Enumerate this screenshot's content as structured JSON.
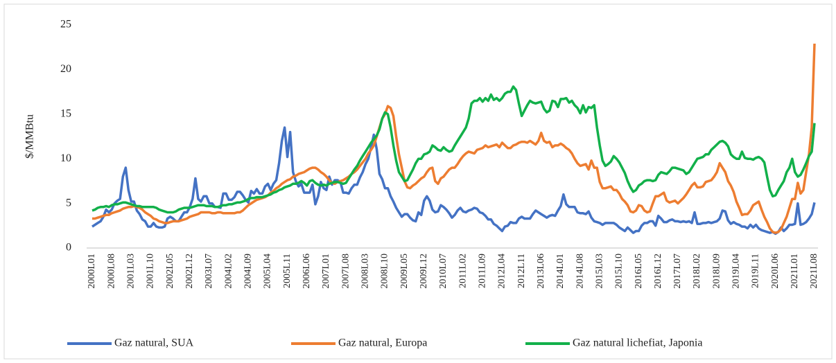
{
  "chart_data": {
    "type": "line",
    "y_label": "$/MMBtu",
    "ylim": [
      0,
      25
    ],
    "yticks": [
      0,
      5,
      10,
      15,
      20,
      25
    ],
    "legend": "bottom",
    "categories": [
      "2000L01",
      null,
      null,
      null,
      null,
      null,
      null,
      "2000L08",
      null,
      null,
      null,
      null,
      null,
      null,
      "2001L03",
      null,
      null,
      null,
      null,
      null,
      null,
      "2001L10",
      null,
      null,
      null,
      null,
      null,
      null,
      "2002L05",
      null,
      null,
      null,
      null,
      null,
      null,
      "2002L12",
      null,
      null,
      null,
      null,
      null,
      null,
      "2003L07",
      null,
      null,
      null,
      null,
      null,
      null,
      "2004L02",
      null,
      null,
      null,
      null,
      null,
      null,
      "2004L09",
      null,
      null,
      null,
      null,
      null,
      null,
      "2005L04",
      null,
      null,
      null,
      null,
      null,
      null,
      "2005L11",
      null,
      null,
      null,
      null,
      null,
      null,
      "2006L06",
      null,
      null,
      null,
      null,
      null,
      null,
      "2007L01",
      null,
      null,
      null,
      null,
      null,
      null,
      "2007L08",
      null,
      null,
      null,
      null,
      null,
      null,
      "2008L03",
      null,
      null,
      null,
      null,
      null,
      null,
      "2008L10",
      null,
      null,
      null,
      null,
      null,
      null,
      "2009L05",
      null,
      null,
      null,
      null,
      null,
      null,
      "2009L12",
      null,
      null,
      null,
      null,
      null,
      null,
      "2010L07",
      null,
      null,
      null,
      null,
      null,
      null,
      "2011L02",
      null,
      null,
      null,
      null,
      null,
      null,
      "2011L09",
      null,
      null,
      null,
      null,
      null,
      null,
      "2012L04",
      null,
      null,
      null,
      null,
      null,
      null,
      "2012L11",
      null,
      null,
      null,
      null,
      null,
      null,
      "2013L06",
      null,
      null,
      null,
      null,
      null,
      null,
      "2014L01",
      null,
      null,
      null,
      null,
      null,
      null,
      "2014L08",
      null,
      null,
      null,
      null,
      null,
      null,
      "2015L03",
      null,
      null,
      null,
      null,
      null,
      null,
      "2015L10",
      null,
      null,
      null,
      null,
      null,
      null,
      "2016L05",
      null,
      null,
      null,
      null,
      null,
      null,
      "2016L12",
      null,
      null,
      null,
      null,
      null,
      null,
      "2017L07",
      null,
      null,
      null,
      null,
      null,
      null,
      "2018L02",
      null,
      null,
      null,
      null,
      null,
      null,
      "2018L09",
      null,
      null,
      null,
      null,
      null,
      null,
      "2019L04",
      null,
      null,
      null,
      null,
      null,
      null,
      "2019L11",
      null,
      null,
      null,
      null,
      null,
      null,
      "2020L06",
      null,
      null,
      null,
      null,
      null,
      null,
      "2021L01",
      null,
      null,
      null,
      null,
      null,
      null,
      "2021L08"
    ],
    "series": [
      {
        "name": "Gaz natural, SUA",
        "color": "#4472c4",
        "values": [
          2.4,
          2.6,
          2.8,
          3.0,
          3.5,
          4.3,
          4.0,
          4.3,
          5.0,
          5.3,
          5.5,
          8.0,
          9.0,
          6.5,
          5.2,
          5.2,
          4.2,
          3.8,
          3.2,
          3.0,
          2.4,
          2.4,
          2.8,
          2.4,
          2.3,
          2.3,
          2.4,
          3.3,
          3.5,
          3.3,
          3.0,
          3.0,
          3.5,
          4.0,
          4.0,
          4.6,
          5.5,
          7.8,
          5.5,
          5.2,
          5.8,
          5.8,
          5.0,
          5.0,
          4.6,
          4.6,
          4.5,
          6.1,
          6.1,
          5.4,
          5.4,
          5.7,
          6.3,
          6.3,
          5.9,
          5.4,
          5.1,
          6.4,
          6.1,
          6.6,
          6.1,
          6.1,
          6.9,
          7.2,
          6.5,
          7.2,
          7.6,
          9.5,
          12.0,
          13.5,
          10.2,
          13.0,
          8.5,
          7.5,
          6.9,
          7.2,
          6.2,
          6.2,
          6.2,
          7.1,
          4.9,
          5.8,
          7.4,
          6.7,
          6.5,
          8.0,
          7.1,
          7.6,
          7.6,
          7.4,
          6.2,
          6.2,
          6.1,
          6.7,
          7.1,
          7.1,
          7.9,
          8.5,
          9.4,
          10.0,
          11.3,
          12.7,
          11.1,
          8.3,
          7.7,
          6.7,
          6.7,
          5.8,
          5.2,
          4.5,
          4.0,
          3.5,
          3.8,
          3.8,
          3.4,
          3.1,
          3.0,
          4.0,
          3.7,
          5.3,
          5.8,
          5.3,
          4.3,
          4.0,
          4.1,
          4.8,
          4.6,
          4.3,
          3.9,
          3.4,
          3.7,
          4.2,
          4.5,
          4.1,
          4.0,
          4.2,
          4.3,
          4.5,
          4.4,
          4.0,
          3.9,
          3.6,
          3.2,
          3.2,
          2.7,
          2.5,
          2.2,
          1.9,
          2.4,
          2.5,
          2.9,
          2.8,
          2.8,
          3.3,
          3.5,
          3.3,
          3.3,
          3.3,
          3.8,
          4.2,
          4.0,
          3.8,
          3.6,
          3.4,
          3.6,
          3.7,
          3.6,
          4.2,
          4.7,
          6.0,
          4.9,
          4.6,
          4.6,
          4.6,
          4.0,
          3.9,
          3.9,
          3.8,
          4.1,
          3.4,
          3.0,
          2.9,
          2.8,
          2.6,
          2.8,
          2.8,
          2.8,
          2.8,
          2.6,
          2.3,
          2.1,
          1.9,
          2.3,
          2.0,
          1.7,
          1.9,
          1.9,
          2.5,
          2.8,
          2.8,
          3.0,
          3.0,
          2.5,
          3.6,
          3.3,
          2.9,
          2.9,
          3.1,
          3.2,
          3.0,
          3.0,
          2.9,
          3.0,
          2.9,
          3.0,
          2.8,
          4.0,
          2.7,
          2.7,
          2.8,
          2.8,
          2.9,
          2.8,
          2.9,
          3.0,
          3.3,
          4.2,
          4.1,
          3.1,
          2.7,
          2.9,
          2.7,
          2.6,
          2.4,
          2.4,
          2.2,
          2.6,
          2.3,
          2.6,
          2.2,
          2.0,
          1.9,
          1.8,
          1.7,
          1.8,
          1.6,
          1.8,
          2.3,
          1.9,
          2.2,
          2.6,
          2.6,
          2.7,
          5.0,
          2.6,
          2.7,
          2.9,
          3.3,
          3.8,
          5.1
        ]
      },
      {
        "name": "Gaz natural, Europa",
        "color": "#ed7d31",
        "values": [
          3.3,
          3.3,
          3.4,
          3.5,
          3.6,
          3.7,
          3.7,
          3.9,
          4.0,
          4.1,
          4.2,
          4.4,
          4.5,
          4.6,
          4.6,
          4.7,
          4.6,
          4.5,
          4.3,
          4.0,
          3.8,
          3.6,
          3.3,
          3.2,
          3.0,
          2.9,
          2.8,
          2.8,
          2.9,
          3.0,
          3.0,
          3.0,
          3.1,
          3.2,
          3.3,
          3.5,
          3.6,
          3.7,
          3.8,
          4.0,
          4.0,
          4.0,
          4.0,
          3.9,
          3.9,
          4.0,
          4.0,
          3.9,
          3.9,
          3.9,
          3.9,
          3.9,
          4.0,
          4.0,
          4.2,
          4.5,
          4.8,
          5.0,
          5.2,
          5.4,
          5.5,
          5.6,
          5.7,
          5.9,
          6.2,
          6.4,
          6.7,
          6.9,
          7.2,
          7.4,
          7.6,
          7.7,
          8.0,
          8.1,
          8.3,
          8.4,
          8.5,
          8.7,
          8.9,
          9.0,
          9.0,
          8.8,
          8.5,
          8.3,
          8.0,
          7.6,
          7.3,
          7.2,
          7.4,
          7.5,
          7.6,
          7.8,
          8.0,
          8.3,
          8.5,
          8.8,
          9.2,
          9.6,
          10.0,
          10.6,
          11.0,
          11.5,
          12.5,
          13.5,
          14.5,
          15.0,
          15.9,
          15.7,
          14.8,
          12.5,
          10.5,
          9.0,
          7.5,
          6.8,
          6.7,
          7.0,
          7.2,
          7.5,
          7.8,
          8.0,
          8.5,
          8.9,
          9.0,
          7.5,
          7.2,
          7.8,
          8.0,
          8.4,
          8.8,
          9.0,
          9.0,
          9.4,
          9.9,
          10.3,
          10.6,
          10.8,
          10.7,
          10.6,
          11.0,
          11.1,
          11.2,
          11.5,
          11.3,
          11.4,
          11.5,
          11.6,
          11.3,
          11.8,
          11.5,
          11.2,
          11.2,
          11.5,
          11.6,
          11.8,
          11.9,
          11.9,
          11.8,
          12.0,
          11.8,
          11.6,
          12.0,
          12.9,
          12.0,
          11.8,
          11.9,
          11.3,
          11.5,
          11.5,
          11.7,
          11.5,
          11.2,
          11.0,
          10.6,
          10.0,
          9.5,
          9.2,
          9.3,
          9.4,
          8.8,
          9.8,
          9.0,
          9.0,
          7.4,
          6.7,
          6.7,
          6.8,
          6.9,
          6.5,
          6.5,
          6.1,
          5.5,
          5.2,
          4.8,
          4.1,
          4.0,
          4.2,
          4.8,
          4.7,
          4.2,
          4.0,
          4.1,
          5.0,
          5.8,
          5.8,
          6.0,
          6.2,
          5.3,
          5.1,
          5.2,
          5.3,
          5.0,
          5.3,
          5.6,
          6.0,
          6.5,
          7.0,
          7.3,
          6.8,
          6.8,
          6.9,
          7.4,
          7.5,
          7.6,
          8.0,
          8.5,
          9.5,
          9.0,
          8.5,
          7.5,
          7.0,
          6.3,
          5.2,
          4.5,
          3.7,
          3.8,
          3.8,
          4.2,
          4.8,
          5.0,
          5.2,
          4.3,
          3.5,
          2.9,
          2.2,
          1.8,
          1.7,
          1.8,
          2.1,
          2.8,
          3.5,
          4.5,
          5.5,
          5.5,
          7.3,
          6.1,
          6.5,
          8.5,
          10.5,
          13.5,
          22.9
        ]
      },
      {
        "name": "Gaz natural lichefiat, Japonia",
        "color": "#12b04a",
        "values": [
          4.2,
          4.3,
          4.5,
          4.6,
          4.6,
          4.7,
          4.6,
          4.8,
          4.9,
          4.9,
          5.0,
          5.1,
          5.1,
          5.0,
          4.9,
          4.8,
          4.7,
          4.7,
          4.6,
          4.6,
          4.6,
          4.6,
          4.6,
          4.5,
          4.3,
          4.2,
          4.1,
          4.0,
          4.0,
          4.0,
          4.1,
          4.3,
          4.4,
          4.5,
          4.5,
          4.5,
          4.6,
          4.7,
          4.8,
          4.8,
          4.8,
          4.7,
          4.7,
          4.7,
          4.6,
          4.6,
          4.7,
          4.8,
          4.8,
          4.9,
          4.9,
          5.0,
          5.1,
          5.1,
          5.2,
          5.3,
          5.5,
          5.6,
          5.6,
          5.7,
          5.7,
          5.7,
          5.8,
          5.9,
          6.0,
          6.2,
          6.3,
          6.5,
          6.6,
          6.8,
          6.9,
          7.0,
          7.2,
          7.2,
          7.3,
          7.5,
          7.3,
          7.0,
          7.5,
          7.6,
          7.3,
          7.1,
          7.0,
          7.1,
          7.0,
          7.2,
          7.3,
          7.4,
          7.4,
          7.3,
          7.2,
          7.3,
          7.8,
          8.3,
          8.8,
          9.2,
          9.8,
          10.3,
          10.8,
          11.3,
          11.8,
          12.2,
          12.6,
          13.3,
          14.5,
          15.2,
          15.0,
          13.5,
          11.5,
          9.8,
          8.5,
          8.0,
          7.5,
          7.6,
          8.2,
          8.8,
          9.5,
          10.0,
          10.0,
          10.5,
          10.6,
          10.8,
          11.5,
          11.3,
          11.0,
          10.9,
          11.3,
          11.0,
          10.8,
          10.9,
          11.5,
          12.0,
          12.5,
          13.0,
          13.5,
          14.5,
          16.2,
          16.5,
          16.5,
          16.8,
          16.4,
          16.8,
          16.5,
          17.2,
          16.6,
          16.8,
          16.5,
          16.8,
          17.3,
          17.5,
          17.5,
          18.1,
          17.7,
          16.2,
          14.8,
          15.4,
          16.0,
          16.5,
          16.3,
          16.2,
          16.3,
          16.4,
          15.6,
          15.2,
          15.4,
          16.5,
          16.4,
          15.8,
          16.7,
          16.7,
          16.8,
          16.3,
          16.5,
          16.0,
          15.7,
          15.1,
          16.0,
          15.2,
          15.8,
          15.7,
          16.0,
          13.5,
          11.5,
          9.8,
          9.2,
          9.4,
          9.7,
          10.3,
          10.0,
          9.6,
          9.0,
          8.4,
          7.5,
          6.8,
          6.3,
          6.5,
          7.0,
          7.2,
          7.5,
          7.6,
          7.6,
          7.5,
          7.6,
          8.2,
          8.5,
          8.4,
          8.3,
          8.6,
          9.0,
          9.0,
          8.9,
          8.8,
          8.7,
          8.3,
          8.5,
          9.0,
          9.5,
          10.0,
          10.1,
          10.2,
          10.5,
          10.5,
          11.0,
          11.3,
          11.6,
          11.9,
          12.0,
          11.8,
          11.4,
          10.5,
          10.2,
          10.0,
          10.0,
          10.8,
          10.1,
          10.0,
          10.0,
          9.9,
          10.1,
          10.2,
          10.0,
          9.6,
          8.0,
          6.5,
          5.8,
          5.9,
          6.5,
          7.0,
          7.5,
          8.5,
          9.0,
          10.0,
          8.5,
          8.0,
          8.2,
          8.8,
          9.5,
          10.3,
          10.8,
          14.0
        ]
      }
    ]
  }
}
